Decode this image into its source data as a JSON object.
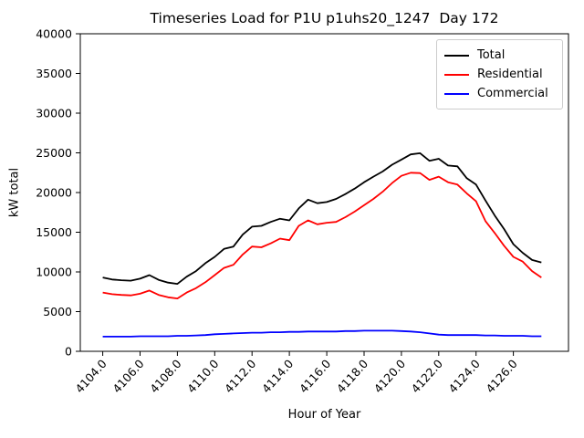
{
  "figure": {
    "background": "#ffffff"
  },
  "chart_data": {
    "type": "line",
    "title": "Timeseries Load for P1U p1uhs20_1247  Day 172",
    "xlabel": "Hour of Year",
    "ylabel": "kW total",
    "xlim": [
      4102.8,
      4128.95
    ],
    "ylim": [
      0,
      40000
    ],
    "grid": false,
    "legend_position": "upper right",
    "x_ticks": {
      "values": [
        4104,
        4106,
        4108,
        4110,
        4112,
        4114,
        4116,
        4118,
        4120,
        4122,
        4124,
        4126
      ],
      "labels": [
        "4104.0",
        "4106.0",
        "4108.0",
        "4110.0",
        "4112.0",
        "4114.0",
        "4116.0",
        "4118.0",
        "4120.0",
        "4122.0",
        "4124.0",
        "4126.0"
      ]
    },
    "y_ticks": {
      "values": [
        0,
        5000,
        10000,
        15000,
        20000,
        25000,
        30000,
        35000,
        40000
      ],
      "labels": [
        "0",
        "5000",
        "10000",
        "15000",
        "20000",
        "25000",
        "30000",
        "35000",
        "40000"
      ]
    },
    "x": [
      4104.0,
      4104.5,
      4105.0,
      4105.5,
      4106.0,
      4106.5,
      4107.0,
      4107.5,
      4108.0,
      4108.5,
      4109.0,
      4109.5,
      4110.0,
      4110.5,
      4111.0,
      4111.5,
      4112.0,
      4112.5,
      4113.0,
      4113.5,
      4114.0,
      4114.5,
      4115.0,
      4115.5,
      4116.0,
      4116.5,
      4117.0,
      4117.5,
      4118.0,
      4118.5,
      4119.0,
      4119.5,
      4120.0,
      4120.5,
      4121.0,
      4121.5,
      4122.0,
      4122.5,
      4123.0,
      4123.5,
      4124.0,
      4124.5,
      4125.0,
      4125.5,
      4126.0,
      4126.5,
      4127.0,
      4127.5
    ],
    "series": [
      {
        "name": "Total",
        "color": "#000000",
        "values": [
          9300,
          9050,
          8950,
          8900,
          9150,
          9600,
          9000,
          8650,
          8500,
          9400,
          10100,
          11100,
          11900,
          12900,
          13200,
          14700,
          15700,
          15800,
          16300,
          16700,
          16500,
          18000,
          19100,
          18650,
          18800,
          19200,
          19800,
          20500,
          21300,
          22000,
          22650,
          23500,
          24150,
          24800,
          24950,
          24000,
          24250,
          23400,
          23300,
          21800,
          21000,
          19000,
          17100,
          15400,
          13500,
          12400,
          11500,
          11200
        ]
      },
      {
        "name": "Residential",
        "color": "#ff0000",
        "values": [
          7400,
          7200,
          7100,
          7050,
          7250,
          7650,
          7100,
          6800,
          6650,
          7400,
          7950,
          8700,
          9600,
          10500,
          10900,
          12200,
          13200,
          13100,
          13600,
          14200,
          14000,
          15800,
          16500,
          16000,
          16200,
          16300,
          16900,
          17600,
          18400,
          19200,
          20100,
          21200,
          22100,
          22500,
          22450,
          21600,
          22000,
          21300,
          21000,
          19900,
          18900,
          16400,
          14900,
          13300,
          11900,
          11300,
          10100,
          9300
        ]
      },
      {
        "name": "Commercial",
        "color": "#0000ff",
        "values": [
          1850,
          1850,
          1850,
          1850,
          1900,
          1900,
          1900,
          1900,
          1950,
          1950,
          2000,
          2050,
          2150,
          2200,
          2250,
          2300,
          2350,
          2350,
          2400,
          2400,
          2450,
          2450,
          2500,
          2500,
          2500,
          2500,
          2550,
          2550,
          2600,
          2600,
          2600,
          2600,
          2550,
          2500,
          2400,
          2250,
          2100,
          2050,
          2050,
          2050,
          2050,
          2000,
          2000,
          1950,
          1950,
          1950,
          1900,
          1900
        ]
      }
    ]
  }
}
